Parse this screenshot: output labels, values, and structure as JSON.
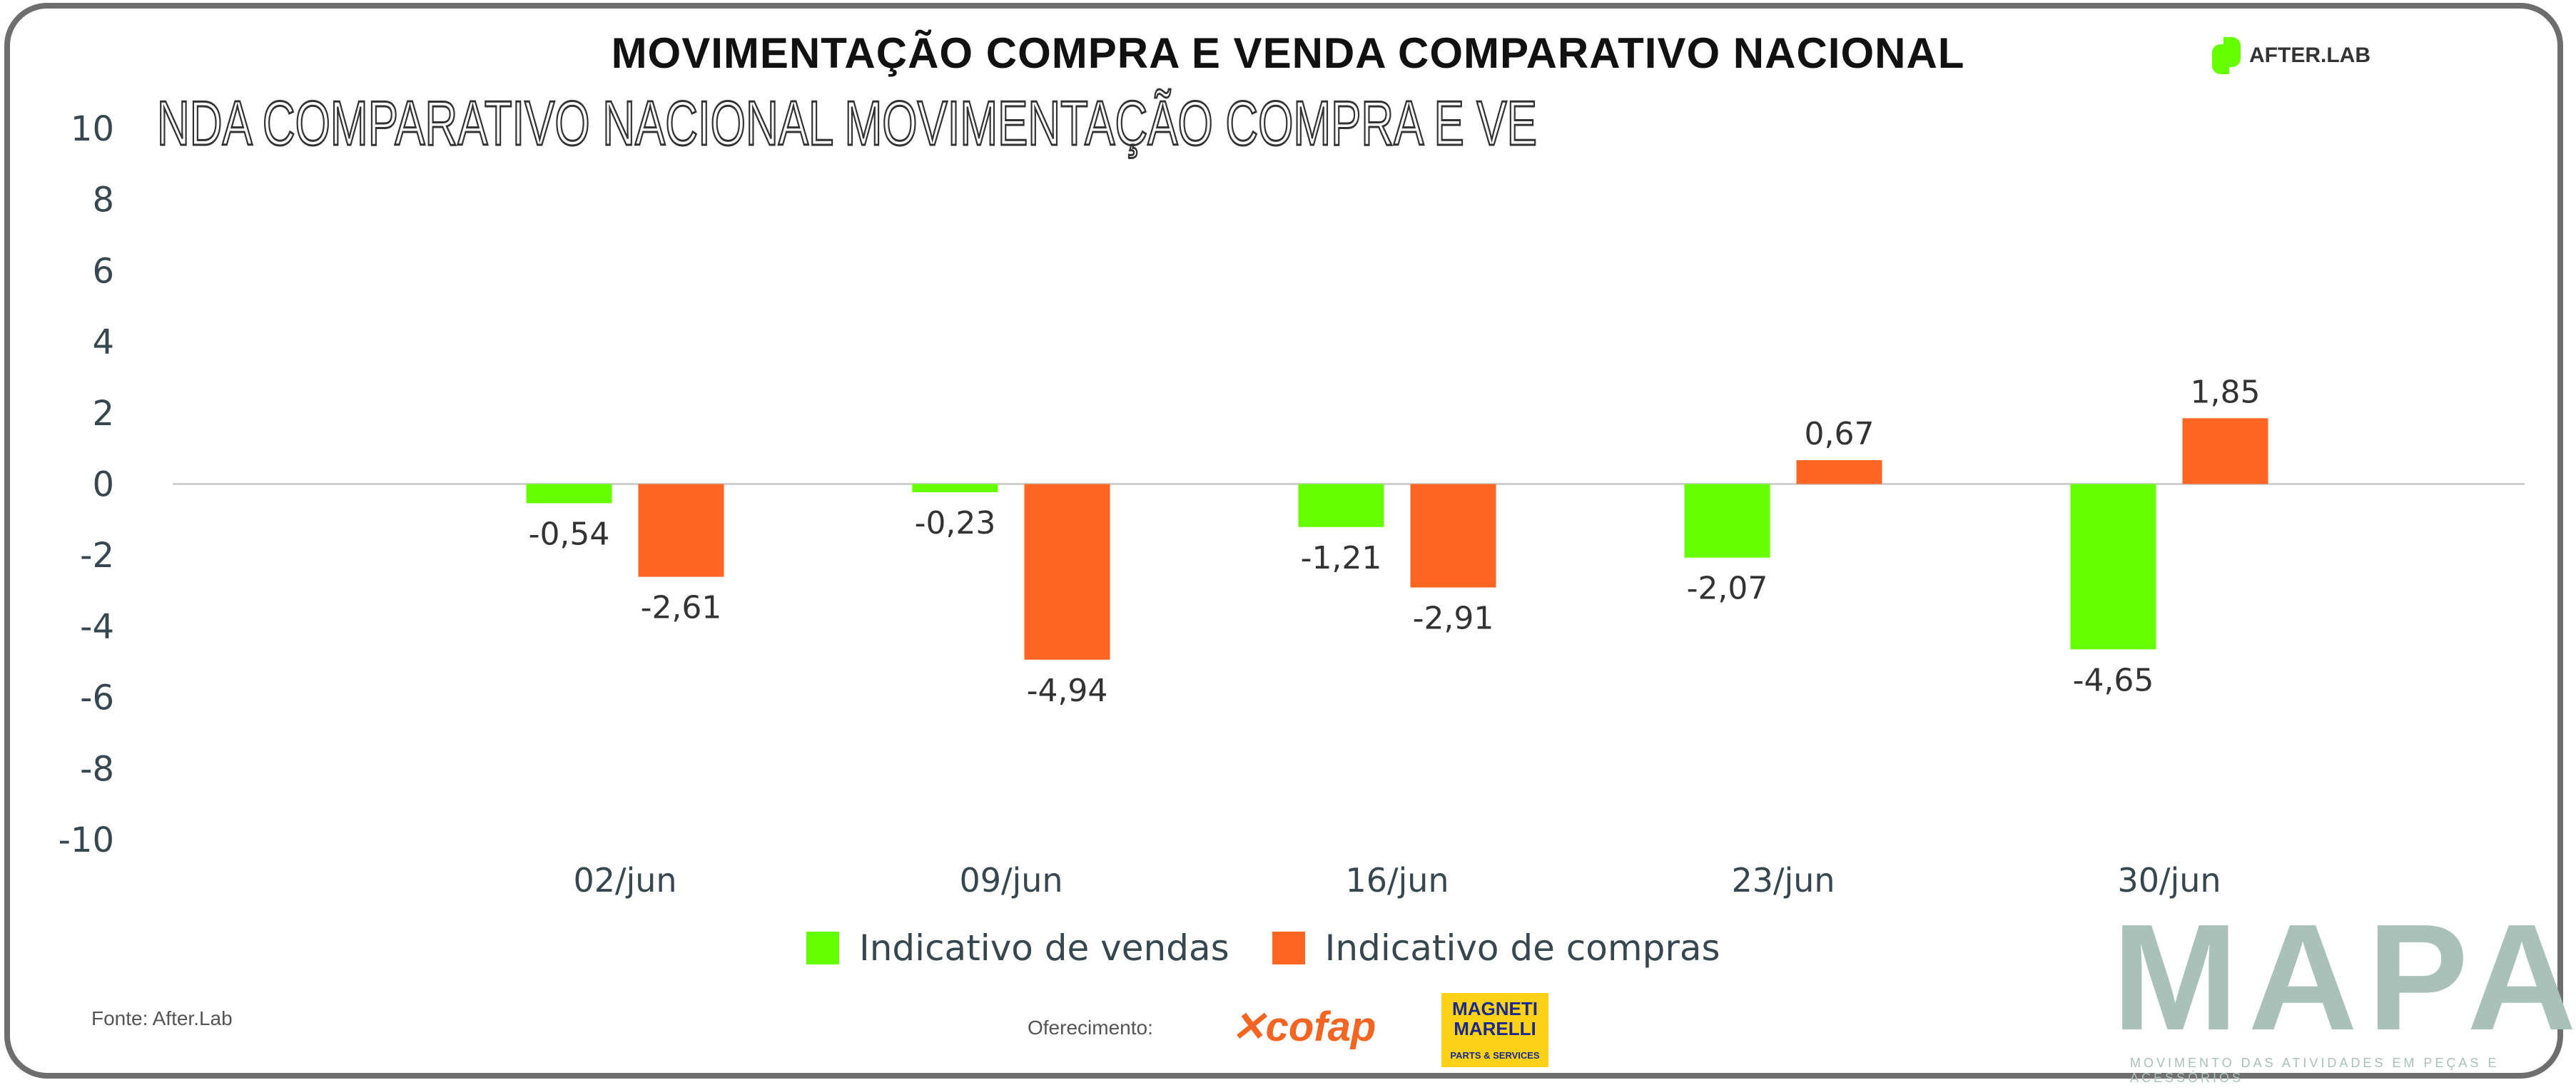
{
  "header": {
    "title": "MOVIMENTAÇÃO COMPRA E VENDA COMPARATIVO NACIONAL",
    "ghost_text": "NDA COMPARATIVO NACIONAL MOVIMENTAÇÃO COMPRA E VE",
    "brand_logo": "AFTER.LAB"
  },
  "chart_data": {
    "type": "bar",
    "title": "MOVIMENTAÇÃO COMPRA E VENDA COMPARATIVO NACIONAL",
    "categories": [
      "02/jun",
      "09/jun",
      "16/jun",
      "23/jun",
      "30/jun"
    ],
    "series": [
      {
        "name": "Indicativo de vendas",
        "color": "#66ff00",
        "values": [
          -0.54,
          -0.23,
          -1.21,
          -2.07,
          -4.65
        ],
        "labels": [
          "-0,54",
          "-0,23",
          "-1,21",
          "-2,07",
          "-4,65"
        ]
      },
      {
        "name": "Indicativo de compras",
        "color": "#ff6622",
        "values": [
          -2.61,
          -4.94,
          -2.91,
          0.67,
          1.85
        ],
        "labels": [
          "-2,61",
          "-4,94",
          "-2,91",
          "0,67",
          "1,85"
        ]
      }
    ],
    "ylim": [
      -10,
      10
    ],
    "yticks": [
      "10",
      "8",
      "6",
      "4",
      "2",
      "0",
      "-2",
      "-4",
      "-6",
      "-8",
      "-10"
    ],
    "ytick_values": [
      10,
      8,
      6,
      4,
      2,
      0,
      -2,
      -4,
      -6,
      -8,
      -10
    ],
    "xlabel": "",
    "ylabel": "",
    "legend_position": "bottom-center",
    "grid": false
  },
  "footer": {
    "source": "Fonte: After.Lab",
    "sponsor_label": "Oferecimento:",
    "sponsor1": "cofap",
    "sponsor2_line1": "MAGNETI",
    "sponsor2_line2": "MARELLI",
    "sponsor2_sub": "PARTS & SERVICES",
    "mapa": "MAPA",
    "mapa_sub": "MOVIMENTO DAS ATIVIDADES EM PEÇAS E ACESSÓRIOS"
  }
}
